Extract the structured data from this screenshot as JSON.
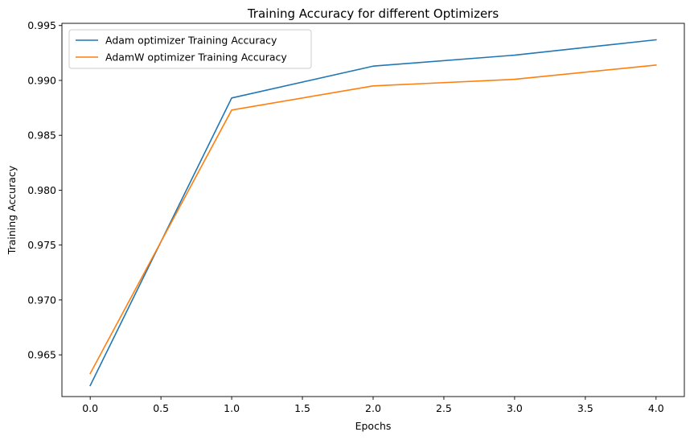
{
  "chart_data": {
    "type": "line",
    "title": "Training Accuracy for different Optimizers",
    "xlabel": "Epochs",
    "ylabel": "Training Accuracy",
    "xlim": [
      -0.2,
      4.2
    ],
    "ylim": [
      0.9612,
      0.9952
    ],
    "xticks": [
      0.0,
      0.5,
      1.0,
      1.5,
      2.0,
      2.5,
      3.0,
      3.5,
      4.0
    ],
    "xtick_labels": [
      "0.0",
      "0.5",
      "1.0",
      "1.5",
      "2.0",
      "2.5",
      "3.0",
      "3.5",
      "4.0"
    ],
    "yticks": [
      0.965,
      0.97,
      0.975,
      0.98,
      0.985,
      0.99,
      0.995
    ],
    "ytick_labels": [
      "0.965",
      "0.970",
      "0.975",
      "0.980",
      "0.985",
      "0.990",
      "0.995"
    ],
    "grid": false,
    "legend_position": "top-left",
    "x": [
      0,
      1,
      2,
      3,
      4
    ],
    "series": [
      {
        "name": "Adam optimizer Training Accuracy",
        "color": "#1f77b4",
        "values": [
          0.9622,
          0.9884,
          0.9913,
          0.9923,
          0.9937
        ]
      },
      {
        "name": "AdamW optimizer Training Accuracy",
        "color": "#ff7f0e",
        "values": [
          0.9633,
          0.9873,
          0.9895,
          0.9901,
          0.9914
        ]
      }
    ]
  }
}
